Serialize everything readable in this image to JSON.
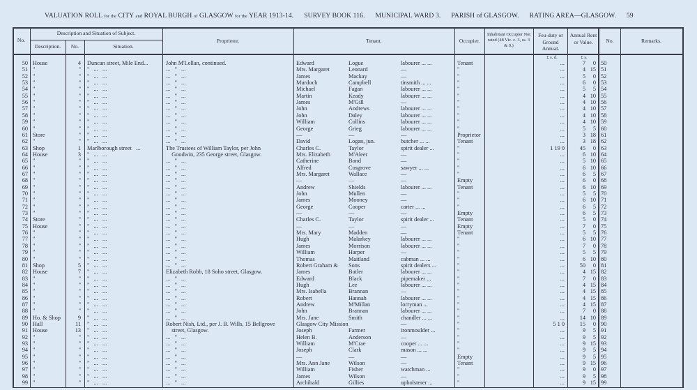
{
  "header": {
    "title_a": "VALUATION ROLL",
    "title_b": "for the",
    "title_c": "CITY",
    "title_d": "and",
    "title_e": "ROYAL BURGH",
    "title_f": "of",
    "title_g": "GLASGOW",
    "title_h": "for the",
    "title_i": "YEAR 1913-14.",
    "survey": "SURVEY BOOK 116.",
    "ward": "MUNICIPAL WARD 3.",
    "parish": "PARISH of GLASGOW.",
    "rating": "RATING AREA—GLASGOW.",
    "page": "59"
  },
  "columns": {
    "no": "No.",
    "desc_group": "Description and Situation of Subject.",
    "description": "Description.",
    "num": "No.",
    "situation": "Situation.",
    "proprietor": "Proprietor.",
    "tenant": "Tenant.",
    "occupier": "Occupier.",
    "inhabitant": "Inhabitant Occupier Not rated (48 Vic. c. 3, ss. 3 & 9.)",
    "feu": "Feu-duty or Ground Annual.",
    "rent": "Annual Rent or Value.",
    "no2": "No.",
    "remarks": "Remarks.",
    "feu_units": "£  s.  d.",
    "rent_units": "£  s."
  },
  "rows": [
    [
      "50",
      "House",
      "4",
      "Duncan street, Mile End...",
      "John M'Lellan, continued.",
      "Edward",
      "Logue",
      "labourer ...   ...",
      "Tenant",
      "...",
      "7",
      "0"
    ],
    [
      "51",
      "\"",
      "\"",
      "\"   ...   ...",
      "...   \"   ...",
      "Mrs. Margaret",
      "Leonard",
      "—",
      "\"",
      "...",
      "4",
      "15"
    ],
    [
      "52",
      "\"",
      "\"",
      "\"   ...   ...",
      "...   \"   ...",
      "James",
      "Mackay",
      "—",
      "\"",
      "...",
      "5",
      "0"
    ],
    [
      "53",
      "\"",
      "\"",
      "\"   ...   ...",
      "...   \"   ...",
      "Murdoch",
      "Campbell",
      "tinsmith ...   ...",
      "\"",
      "...",
      "6",
      "0"
    ],
    [
      "54",
      "\"",
      "\"",
      "\"   ...   ...",
      "...   \"   ...",
      "Michael",
      "Fagan",
      "labourer ...   ...",
      "\"",
      "...",
      "5",
      "5"
    ],
    [
      "55",
      "\"",
      "\"",
      "\"   ...   ...",
      "...   \"   ...",
      "Martin",
      "Keady",
      "labourer ...   ...",
      "\"",
      "...",
      "4",
      "10"
    ],
    [
      "56",
      "\"",
      "\"",
      "\"   ...   ...",
      "...   \"   ...",
      "James",
      "M'Gill",
      "—",
      "\"",
      "...",
      "4",
      "10"
    ],
    [
      "57",
      "\"",
      "\"",
      "\"   ...   ...",
      "...   \"   ...",
      "John",
      "Andrews",
      "labourer ...   ...",
      "\"",
      "...",
      "4",
      "10"
    ],
    [
      "58",
      "\"",
      "\"",
      "\"   ...   ...",
      "...   \"   ...",
      "John",
      "Daley",
      "labourer ...   ...",
      "\"",
      "...",
      "4",
      "10"
    ],
    [
      "59",
      "\"",
      "\"",
      "\"   ...   ...",
      "...   \"   ...",
      "William",
      "Collins",
      "labourer ...   ...",
      "\"",
      "...",
      "4",
      "10"
    ],
    [
      "60",
      "\"",
      "\"",
      "\"   ...   ...",
      "...   \"   ...",
      "George",
      "Grieg",
      "labourer ...   ...",
      "\"",
      "...",
      "5",
      "5"
    ],
    [
      "61",
      "Store",
      "\"",
      "\"   ...   ...",
      "...   \"   ...",
      "—",
      "—",
      "—",
      "Proprietor",
      "...",
      "3",
      "18"
    ],
    [
      "62",
      "\"",
      "\"",
      "\"   ...   ...",
      "...   \"   ...",
      "David",
      "Logan, jun.",
      "butcher ...   ...",
      "Tenant",
      "...",
      "3",
      "18"
    ],
    [
      "63",
      "Shop",
      "1",
      "Marlborough street   ...",
      "The Trustees of William Taylor, per John",
      "Charles C.",
      "Taylor",
      "spirit dealer   ...",
      "\"",
      "1  19  0",
      "45",
      "0"
    ],
    [
      "64",
      "House",
      "3",
      "\"   ...   ...",
      "    Goodwin, 235 George street, Glasgow.",
      "Mrs. Elizabeth",
      "M'Aleer",
      "—",
      "\"",
      "...",
      "6",
      "10"
    ],
    [
      "65",
      "\"",
      "\"",
      "\"   ...   ...",
      "...   \"   ...",
      "Catherine",
      "Bond",
      "—",
      "\"",
      "...",
      "5",
      "10"
    ],
    [
      "66",
      "\"",
      "\"",
      "\"   ...   ...",
      "...   \"   ...",
      "Alfred",
      "Cosgrove",
      "sawyer   ...   ...",
      "\"",
      "...",
      "6",
      "10"
    ],
    [
      "67",
      "\"",
      "\"",
      "\"   ...   ...",
      "...   \"   ...",
      "Mrs. Margaret",
      "Wallace",
      "—",
      "\"",
      "...",
      "6",
      "5"
    ],
    [
      "68",
      "\"",
      "\"",
      "\"   ...   ...",
      "...   \"   ...",
      "—",
      "—",
      "—",
      "Empty",
      "...",
      "6",
      "0"
    ],
    [
      "69",
      "\"",
      "\"",
      "\"   ...   ...",
      "...   \"   ...",
      "Andrew",
      "Shields",
      "labourer ...   ...",
      "Tenant",
      "...",
      "6",
      "10"
    ],
    [
      "70",
      "\"",
      "\"",
      "\"   ...   ...",
      "...   \"   ...",
      "John",
      "Mullen",
      "—",
      "\"",
      "...",
      "5",
      "5"
    ],
    [
      "71",
      "\"",
      "\"",
      "\"   ...   ...",
      "...   \"   ...",
      "James",
      "Mooney",
      "—",
      "\"",
      "...",
      "6",
      "10"
    ],
    [
      "72",
      "\"",
      "\"",
      "\"   ...   ...",
      "...   \"   ...",
      "George",
      "Cooper",
      "carter   ...   ...",
      "\"",
      "...",
      "6",
      "5"
    ],
    [
      "73",
      "\"",
      "\"",
      "\"   ...   ...",
      "...   \"   ...",
      "—",
      "—",
      "—",
      "Empty",
      "...",
      "6",
      "5"
    ],
    [
      "74",
      "Store",
      "\"",
      "\"   ...   ...",
      "...   \"   ...",
      "Charles C.",
      "Taylor",
      "spirit dealer   ...",
      "Tenant",
      "...",
      "5",
      "0"
    ],
    [
      "75",
      "House",
      "\"",
      "\"   ...   ...",
      "...   \"   ...",
      "—",
      "—",
      "—",
      "Empty",
      "...",
      "7",
      "0"
    ],
    [
      "76",
      "\"",
      "\"",
      "\"   ...   ...",
      "...   \"   ...",
      "Mrs. Mary",
      "Madden",
      "—",
      "Tenant",
      "...",
      "5",
      "5"
    ],
    [
      "77",
      "\"",
      "\"",
      "\"   ...   ...",
      "...   \"   ...",
      "Hugh",
      "Malarkey",
      "labourer ...   ...",
      "\"",
      "...",
      "6",
      "10"
    ],
    [
      "78",
      "\"",
      "\"",
      "\"   ...   ...",
      "...   \"   ...",
      "James",
      "Morrison",
      "labourer ...   ...",
      "\"",
      "...",
      "7",
      "0"
    ],
    [
      "79",
      "\"",
      "\"",
      "\"   ...   ...",
      "...   \"   ...",
      "William",
      "Harper",
      "—",
      "\"",
      "...",
      "5",
      "5"
    ],
    [
      "80",
      "\"",
      "\"",
      "\"   ...   ...",
      "...   \"   ...",
      "Thomas",
      "Maitland",
      "cabman ...   ...",
      "\"",
      "...",
      "6",
      "10"
    ],
    [
      "81",
      "Shop",
      "5",
      "\"   ...   ...",
      "...   \"   ...",
      "Robert Graham &",
      "Sons",
      "spirit dealers   ...",
      "\"",
      "...",
      "50",
      "0"
    ],
    [
      "82",
      "House",
      "7",
      "\"   ...   ...",
      "Elizabeth Robb, 18 Soho street, Glasgow.",
      "James",
      "Butler",
      "labourer ...   ...",
      "\"",
      "...",
      "4",
      "15"
    ],
    [
      "83",
      "\"",
      "\"",
      "\"   ...   ...",
      "...   \"   ...",
      "Edward",
      "Black",
      "pipemaker   ...",
      "\"",
      "...",
      "7",
      "0"
    ],
    [
      "84",
      "\"",
      "\"",
      "\"   ...   ...",
      "...   \"   ...",
      "Hugh",
      "Lee",
      "labourer ...   ...",
      "\"",
      "...",
      "4",
      "15"
    ],
    [
      "85",
      "\"",
      "\"",
      "\"   ...   ...",
      "...   \"   ...",
      "Mrs. Isabella",
      "Brannan",
      "—",
      "\"",
      "...",
      "4",
      "15"
    ],
    [
      "86",
      "\"",
      "\"",
      "\"   ...   ...",
      "...   \"   ...",
      "Robert",
      "Hannah",
      "labourer ...   ...",
      "\"",
      "...",
      "4",
      "15"
    ],
    [
      "87",
      "\"",
      "\"",
      "\"   ...   ...",
      "...   \"   ...",
      "Andrew",
      "M'Millan",
      "lorryman   ...",
      "\"",
      "...",
      "4",
      "15"
    ],
    [
      "88",
      "\"",
      "\"",
      "\"   ...   ...",
      "...   \"   ...",
      "John",
      "Brannan",
      "labourer ...   ...",
      "\"",
      "...",
      "7",
      "0"
    ],
    [
      "89",
      "Ho. & Shop",
      "9",
      "\"   ...   ...",
      "...   \"   ...",
      "Mrs. Jane",
      "Smith",
      "chandler ...   ...",
      "\"",
      "...",
      "14",
      "10"
    ],
    [
      "90",
      "Hall",
      "11",
      "\"   ...   ...",
      "Robert Nish, Ltd., per J. B. Wills, 15 Bellgrove",
      "Glasgow City Mission",
      "",
      "—",
      "\"",
      "5  1  0",
      "15",
      "0"
    ],
    [
      "91",
      "House",
      "13",
      "\"   ...   ...",
      "    street, Glasgow.",
      "Joseph",
      "Farmer",
      "ironmoulder   ...",
      "\"",
      "...",
      "9",
      "5"
    ],
    [
      "92",
      "\"",
      "\"",
      "\"   ...   ...",
      "...   \"   ...",
      "Helen B.",
      "Anderson",
      "—",
      "\"",
      "...",
      "9",
      "5"
    ],
    [
      "93",
      "\"",
      "\"",
      "\"   ...   ...",
      "...   \"   ...",
      "William",
      "M'Crae",
      "cooper   ...   ...",
      "\"",
      "...",
      "9",
      "15"
    ],
    [
      "94",
      "\"",
      "\"",
      "\"   ...   ...",
      "...   \"   ...",
      "Joseph",
      "Clark",
      "mason   ...   ...",
      "\"",
      "...",
      "9",
      "5"
    ],
    [
      "95",
      "\"",
      "\"",
      "\"   ...   ...",
      "...   \"   ...",
      "—",
      "—",
      "—",
      "Empty",
      "...",
      "9",
      "5"
    ],
    [
      "96",
      "\"",
      "\"",
      "\"   ...   ...",
      "...   \"   ...",
      "Mrs. Ann Jane",
      "Wilson",
      "—",
      "Tenant",
      "...",
      "9",
      "15"
    ],
    [
      "97",
      "\"",
      "\"",
      "\"   ...   ...",
      "...   \"   ...",
      "William",
      "Fisher",
      "watchman   ...",
      "\"",
      "...",
      "9",
      "0"
    ],
    [
      "98",
      "\"",
      "\"",
      "\"   ...   ...",
      "...   \"   ...",
      "James",
      "Wilson",
      "—",
      "\"",
      "...",
      "9",
      "5"
    ],
    [
      "99",
      "\"",
      "\"",
      "\"   ...   ...",
      "...   \"   ...",
      "Archibald",
      "Gillies",
      "upholsterer   ...",
      "\"",
      "...",
      "9",
      "15"
    ]
  ]
}
